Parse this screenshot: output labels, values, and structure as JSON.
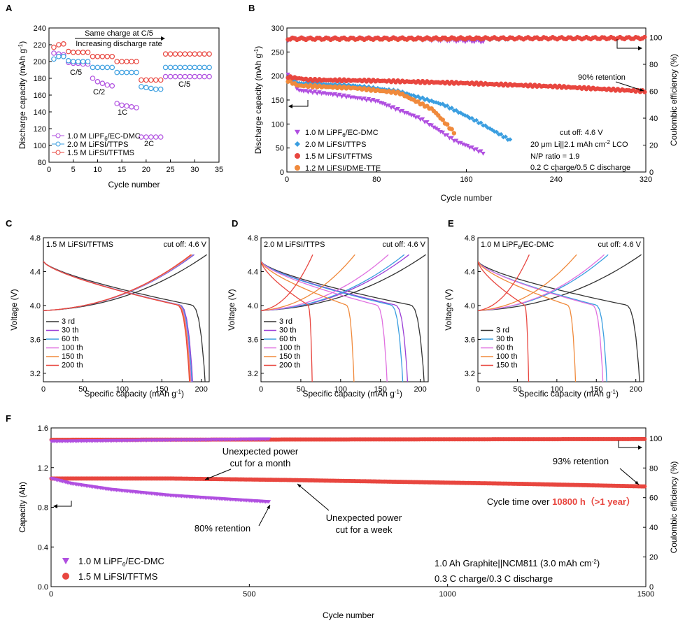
{
  "figure": {
    "panels": {
      "A": {
        "letter": "A"
      },
      "B": {
        "letter": "B"
      },
      "C": {
        "letter": "C"
      },
      "D": {
        "letter": "D"
      },
      "E": {
        "letter": "E"
      },
      "F": {
        "letter": "F"
      }
    }
  },
  "chart_data": [
    {
      "id": "A",
      "type": "scatter",
      "xlabel": "Cycle number",
      "ylabel": "Discharge capacity (mAh g⁻¹)",
      "xlim": [
        0,
        35
      ],
      "ylim": [
        80,
        240
      ],
      "xticks": [
        0,
        5,
        10,
        15,
        20,
        25,
        30,
        35
      ],
      "yticks": [
        80,
        100,
        120,
        140,
        160,
        180,
        200,
        220,
        240
      ],
      "annotations": {
        "top1": "Same charge at C/5",
        "top2": "Increasing discharge rate",
        "c5a": "C/5",
        "c2": "C/2",
        "c1": "1C",
        "c2c": "2C",
        "c5b": "C/5"
      },
      "legend": [
        "1.0 M LiPF6/EC-DMC",
        "2.0 M LiFSI/TTPS",
        "1.5 M LiFSI/TFTMS"
      ],
      "x": [
        1,
        2,
        3,
        4,
        5,
        6,
        7,
        8,
        9,
        10,
        11,
        12,
        13,
        14,
        15,
        16,
        17,
        18,
        19,
        20,
        21,
        22,
        23,
        24,
        25,
        26,
        27,
        28,
        29,
        30,
        31,
        32,
        33
      ],
      "series": [
        {
          "name": "1.0 M LiPF6/EC-DMC",
          "color": "#b04fe0",
          "values": [
            210,
            209,
            208,
            199,
            198,
            198,
            197,
            197,
            180,
            176,
            174,
            172,
            171,
            150,
            148,
            147,
            146,
            145,
            110,
            110,
            110,
            110,
            110,
            182,
            182,
            182,
            182,
            182,
            182,
            182,
            182,
            182,
            182
          ]
        },
        {
          "name": "2.0 M LiFSI/TTPS",
          "color": "#3a9ee0",
          "values": [
            203,
            206,
            206,
            201,
            200,
            200,
            200,
            200,
            193,
            193,
            193,
            193,
            193,
            187,
            187,
            187,
            187,
            187,
            170,
            169,
            168,
            167,
            167,
            193,
            193,
            193,
            193,
            193,
            193,
            193,
            193,
            193,
            193
          ]
        },
        {
          "name": "1.5 M LiFSI/TFTMS",
          "color": "#e8463f",
          "values": [
            217,
            220,
            221,
            212,
            211,
            211,
            211,
            211,
            206,
            206,
            206,
            206,
            206,
            200,
            200,
            200,
            200,
            200,
            178,
            178,
            178,
            178,
            178,
            209,
            209,
            209,
            209,
            209,
            209,
            209,
            209,
            209,
            209
          ]
        }
      ]
    },
    {
      "id": "B",
      "type": "scatter",
      "xlabel": "Cycle number",
      "ylabel": "Discharge capacity (mAh g⁻¹)",
      "y2label": "Coulombic efficiency (%)",
      "xlim": [
        0,
        320
      ],
      "ylim": [
        0,
        300
      ],
      "y2lim": [
        0,
        107
      ],
      "xticks": [
        0,
        80,
        160,
        240,
        320
      ],
      "yticks": [
        0,
        50,
        100,
        150,
        200,
        250,
        300
      ],
      "y2ticks": [
        0,
        20,
        40,
        60,
        80,
        100
      ],
      "annotations": {
        "retention": "90% retention",
        "cond1": "cut off: 4.6 V",
        "cond2": "20 μm Li||2.1 mAh cm⁻² LCO",
        "cond3": "N/P ratio = 1.9",
        "cond4": "0.2 C charge/0.5 C discharge"
      },
      "legend": [
        "1.0 M LiPF6/EC-DMC",
        "2.0 M LiFSI/TTPS",
        "1.5 M LiFSI/TFTMS",
        "1.2 M LiFSI/DME-TTE"
      ],
      "series": [
        {
          "name": "1.0 M LiPF6/EC-DMC",
          "color": "#b04fe0",
          "capacity": [
            [
              1,
              205
            ],
            [
              10,
              170
            ],
            [
              40,
              162
            ],
            [
              80,
              148
            ],
            [
              120,
              110
            ],
            [
              150,
              65
            ],
            [
              175,
              40
            ]
          ],
          "ce": [
            [
              1,
              98
            ],
            [
              5,
              99
            ],
            [
              100,
              99
            ],
            [
              175,
              97
            ]
          ]
        },
        {
          "name": "2.0 M LiFSI/TTPS",
          "color": "#3a9ee0",
          "capacity": [
            [
              1,
              200
            ],
            [
              10,
              185
            ],
            [
              60,
              180
            ],
            [
              100,
              168
            ],
            [
              140,
              140
            ],
            [
              170,
              105
            ],
            [
              200,
              65
            ]
          ],
          "ce": [
            [
              1,
              99
            ],
            [
              200,
              99
            ]
          ]
        },
        {
          "name": "1.5 M LiFSI/TFTMS",
          "color": "#e8463f",
          "capacity": [
            [
              1,
              198
            ],
            [
              20,
              192
            ],
            [
              80,
              190
            ],
            [
              160,
              185
            ],
            [
              240,
              178
            ],
            [
              320,
              168
            ]
          ],
          "ce": [
            [
              1,
              99
            ],
            [
              320,
              99.5
            ]
          ]
        },
        {
          "name": "1.2 M LiFSI/DME-TTE",
          "color": "#f08a3c",
          "capacity": [
            [
              1,
              190
            ],
            [
              10,
              180
            ],
            [
              60,
              175
            ],
            [
              100,
              165
            ],
            [
              130,
              130
            ],
            [
              150,
              80
            ]
          ],
          "ce": [
            [
              1,
              99
            ],
            [
              150,
              99
            ]
          ]
        }
      ]
    },
    {
      "id": "C",
      "type": "line",
      "title": "1.5 M LiFSI/TFTMS",
      "cutoff": "cut off: 4.6 V",
      "xlabel": "Specific capacity (mAh g⁻¹)",
      "ylabel": "Voltage (V)",
      "xlim": [
        0,
        210
      ],
      "ylim": [
        3.1,
        4.8
      ],
      "xticks": [
        0,
        50,
        100,
        150,
        200
      ],
      "yticks": [
        3.2,
        3.6,
        4.0,
        4.4,
        4.8
      ],
      "legend": [
        "3 rd",
        "30 th",
        "60 th",
        "100 th",
        "150 th",
        "200 th"
      ],
      "curves": [
        {
          "name": "3 rd",
          "color": "#333333",
          "cap": 207
        },
        {
          "name": "30 th",
          "color": "#9b3fd6",
          "cap": 191
        },
        {
          "name": "60 th",
          "color": "#3a9ee0",
          "cap": 190
        },
        {
          "name": "100 th",
          "color": "#e070e0",
          "cap": 189
        },
        {
          "name": "150 th",
          "color": "#f08a3c",
          "cap": 188
        },
        {
          "name": "200 th",
          "color": "#e8463f",
          "cap": 187
        }
      ]
    },
    {
      "id": "D",
      "type": "line",
      "title": "2.0 M LiFSI/TTPS",
      "cutoff": "cut off: 4.6 V",
      "xlabel": "Specific capacity (mAh g⁻¹)",
      "ylabel": "Voltage (V)",
      "xlim": [
        0,
        210
      ],
      "ylim": [
        3.1,
        4.8
      ],
      "xticks": [
        0,
        50,
        100,
        150,
        200
      ],
      "yticks": [
        3.2,
        3.6,
        4.0,
        4.4,
        4.8
      ],
      "legend": [
        "3 rd",
        "30 th",
        "60 th",
        "100 th",
        "150 th",
        "200 th"
      ],
      "curves": [
        {
          "name": "3 rd",
          "color": "#333333",
          "cap": 207
        },
        {
          "name": "30 th",
          "color": "#9b3fd6",
          "cap": 186
        },
        {
          "name": "60 th",
          "color": "#3a9ee0",
          "cap": 180
        },
        {
          "name": "100 th",
          "color": "#e070e0",
          "cap": 160
        },
        {
          "name": "150 th",
          "color": "#f08a3c",
          "cap": 118
        },
        {
          "name": "200 th",
          "color": "#e8463f",
          "cap": 65
        }
      ]
    },
    {
      "id": "E",
      "type": "line",
      "title": "1.0 M LiPF6/EC-DMC",
      "cutoff": "cut off: 4.6 V",
      "xlabel": "Specific capacity (mAh g⁻¹)",
      "ylabel": "Voltage (V)",
      "xlim": [
        0,
        210
      ],
      "ylim": [
        3.1,
        4.8
      ],
      "xticks": [
        0,
        50,
        100,
        150,
        200
      ],
      "yticks": [
        3.2,
        3.6,
        4.0,
        4.4,
        4.8
      ],
      "legend": [
        "3 rd",
        "30 th",
        "60 th",
        "100 th",
        "150 th"
      ],
      "curves": [
        {
          "name": "3 rd",
          "color": "#333333",
          "cap": 207
        },
        {
          "name": "30 th",
          "color": "#3a9ee0",
          "cap": 165
        },
        {
          "name": "60 th",
          "color": "#e070e0",
          "cap": 160
        },
        {
          "name": "100 th",
          "color": "#f08a3c",
          "cap": 125
        },
        {
          "name": "150 th",
          "color": "#e8463f",
          "cap": 65
        }
      ]
    },
    {
      "id": "F",
      "type": "scatter",
      "xlabel": "Cycle number",
      "ylabel": "Capacity (Ah)",
      "y2label": "Coulombic efficiency (%)",
      "xlim": [
        0,
        1500
      ],
      "ylim": [
        0,
        1.6
      ],
      "y2lim": [
        0,
        107
      ],
      "xticks": [
        0,
        500,
        1000,
        1500
      ],
      "yticks": [
        0.0,
        0.4,
        0.8,
        1.2,
        1.6
      ],
      "y2ticks": [
        0,
        20,
        40,
        60,
        80,
        100
      ],
      "annotations": {
        "month1": "Unexpected power",
        "month2": "cut for a month",
        "ret93": "93% retention",
        "ret80": "80% retention",
        "week1": "Unexpected power",
        "week2": "cut for a week",
        "time_pre": "Cycle time over ",
        "time_val": "10800 h（>1 year）",
        "cond1": "1.0 Ah Graphite||NCM811 (3.0 mAh cm⁻²)",
        "cond2": "0.3 C charge/0.3 C discharge"
      },
      "legend": [
        "1.0 M LiPF6/EC-DMC",
        "1.5 M LiFSI/TFTMS"
      ],
      "series": [
        {
          "name": "1.0 M LiPF6/EC-DMC",
          "color": "#b04fe0",
          "capacity": [
            [
              1,
              1.09
            ],
            [
              50,
              1.04
            ],
            [
              150,
              0.98
            ],
            [
              300,
              0.92
            ],
            [
              450,
              0.88
            ],
            [
              550,
              0.855
            ]
          ],
          "ce": [
            [
              1,
              98
            ],
            [
              550,
              99.5
            ]
          ]
        },
        {
          "name": "1.5 M LiFSI/TFTMS",
          "color": "#e8463f",
          "capacity": [
            [
              1,
              1.09
            ],
            [
              300,
              1.09
            ],
            [
              600,
              1.075
            ],
            [
              900,
              1.055
            ],
            [
              1200,
              1.035
            ],
            [
              1500,
              1.01
            ]
          ],
          "ce": [
            [
              1,
              99
            ],
            [
              1500,
              99.5
            ]
          ]
        }
      ]
    }
  ]
}
